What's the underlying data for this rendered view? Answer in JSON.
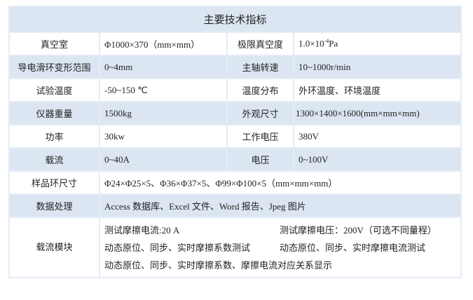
{
  "title": "主要技术指标",
  "rows": [
    {
      "l1": "真空室",
      "v1": "Φ1000×370（mm×mm）",
      "l2": "极限真空度",
      "v2_base": "1.0×10",
      "v2_sup": "-4",
      "v2_unit": "Pa"
    },
    {
      "l1": "导电滑环变形范围",
      "v1": "0~4mm",
      "l2": "主轴转速",
      "v2": "10~1000r/min"
    },
    {
      "l1": "试验温度",
      "v1": "-50~150 ℃",
      "l2": "温度分布",
      "v2": "外环温度、环境温度"
    },
    {
      "l1": "仪器重量",
      "v1": "1500kg",
      "l2": "外观尺寸",
      "v2": "1300×1400×1600(mm×mm×mm)"
    },
    {
      "l1": "功率",
      "v1": "30kw",
      "l2": "工作电压",
      "v2": "380V"
    },
    {
      "l1": "载流",
      "v1": "0~40A",
      "l2": "电压",
      "v2": "0~100V"
    }
  ],
  "sample": {
    "label": "样品环尺寸",
    "value": "Φ24×Φ25×5、Φ36×Φ37×5、Φ99×Φ100×5（mm×mm×mm）"
  },
  "processing": {
    "label": "数据处理",
    "value": "Access 数据库、Excel 文件、Word 报告、Jpeg 图片"
  },
  "module": {
    "label": "载流模块",
    "lines": [
      [
        "测试摩擦电流:20 A",
        "测试摩擦电压：200V（可选不同量程）"
      ],
      [
        "动态原位、同步、实时摩擦系数测试",
        "动态原位、同步、实时摩擦电流测试"
      ],
      [
        "动态原位、同步、实时摩擦系数、摩擦电流对应关系显示"
      ]
    ]
  }
}
